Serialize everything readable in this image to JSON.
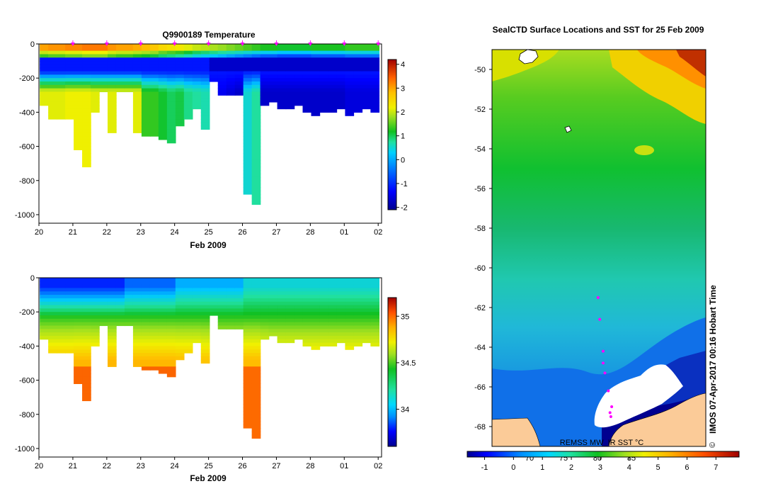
{
  "colors": {
    "jet": [
      "#00008f",
      "#0000ff",
      "#0060ff",
      "#00c8ff",
      "#20e0a0",
      "#10c020",
      "#a0e020",
      "#f0f000",
      "#ffc000",
      "#ff7000",
      "#e02000",
      "#8f0000"
    ],
    "land": "#fbcb98",
    "ice": "#ffffff",
    "marker": "#ff00ff",
    "axis": "#000000"
  },
  "chart_data": [
    {
      "id": "temperature-section",
      "type": "heatmap",
      "title": "Q9900189  Temperature",
      "xlabel": "Feb 2009",
      "ylabel": "",
      "x_tick_labels": [
        "20",
        "21",
        "22",
        "23",
        "24",
        "25",
        "26",
        "27",
        "28",
        "01",
        "02"
      ],
      "x_range_days": [
        20,
        30.1
      ],
      "y_ticks": [
        0,
        -200,
        -400,
        -600,
        -800,
        -1000
      ],
      "ylim": [
        -1050,
        0
      ],
      "colorbar": {
        "min": -2.1,
        "max": 4.2,
        "ticks": [
          4,
          3,
          2,
          1,
          0,
          -1,
          -2
        ]
      },
      "profile_markers_x": [
        21,
        22,
        23,
        24,
        25,
        26,
        27,
        28,
        29,
        30
      ],
      "profiles": {
        "x": [
          20.15,
          20.4,
          20.65,
          20.9,
          21.15,
          21.4,
          21.65,
          21.9,
          22.15,
          22.4,
          22.65,
          22.9,
          23.15,
          23.4,
          23.65,
          23.9,
          24.15,
          24.4,
          24.65,
          24.9,
          25.15,
          25.4,
          25.65,
          25.9,
          26.15,
          26.4,
          26.65,
          26.9,
          27.15,
          27.4,
          27.65,
          27.9,
          28.15,
          28.4,
          28.65,
          28.9,
          29.15,
          29.4,
          29.65,
          29.9
        ],
        "max_depth": [
          360,
          440,
          435,
          430,
          610,
          710,
          390,
          270,
          510,
          270,
          270,
          520,
          540,
          540,
          560,
          565,
          480,
          430,
          380,
          490,
          210,
          300,
          300,
          300,
          865,
          940,
          360,
          340,
          370,
          365,
          360,
          400,
          420,
          400,
          390,
          375,
          420,
          400,
          380,
          390
        ],
        "surface_temp": [
          2.1,
          2.2,
          2.2,
          2.3,
          2.3,
          2.4,
          2.4,
          2.4,
          2.2,
          2.1,
          2.1,
          2.0,
          1.9,
          1.8,
          1.6,
          1.5,
          1.4,
          1.2,
          1.0,
          0.9,
          0.8,
          0.7,
          0.6,
          0.5,
          0.4,
          0.3,
          0.2,
          0.2,
          0.1,
          0.1,
          0.1,
          0.1,
          0.2,
          0.2,
          0.2,
          0.2,
          0.3,
          0.3,
          0.3,
          0.3
        ],
        "deep_temp": [
          1.8,
          1.8,
          1.8,
          1.9,
          1.9,
          1.9,
          1.8,
          1.8,
          1.8,
          1.8,
          1.8,
          1.8,
          0.9,
          0.9,
          0.7,
          0.5,
          0.6,
          0.3,
          0.2,
          0.1,
          -1.6,
          -1.6,
          -1.7,
          -1.8,
          -0.1,
          0.2,
          -1.8,
          -1.8,
          -1.8,
          -1.8,
          -1.8,
          -1.8,
          -1.8,
          -1.8,
          -1.8,
          -1.8,
          -1.7,
          -1.7,
          -1.7,
          -1.7
        ]
      }
    },
    {
      "id": "salinity-section",
      "type": "heatmap",
      "title": "",
      "xlabel": "Feb 2009",
      "ylabel": "",
      "x_tick_labels": [
        "20",
        "21",
        "22",
        "23",
        "24",
        "25",
        "26",
        "27",
        "28",
        "01",
        "02"
      ],
      "x_range_days": [
        20,
        30.1
      ],
      "y_ticks": [
        0,
        -200,
        -400,
        -600,
        -800,
        -1000
      ],
      "ylim": [
        -1050,
        0
      ],
      "colorbar": {
        "min": 33.6,
        "max": 35.2,
        "ticks": [
          35,
          34.5,
          34
        ]
      },
      "profiles": {
        "surface_sal": [
          33.8,
          33.8,
          33.8,
          33.8,
          33.8,
          33.8,
          33.8,
          33.8,
          33.8,
          33.8,
          33.9,
          33.9,
          33.9,
          33.9,
          33.9,
          33.9,
          34.0,
          34.0,
          34.0,
          34.0,
          34.0,
          34.0,
          34.0,
          34.0,
          34.1,
          34.1,
          34.1,
          34.1,
          34.1,
          34.1,
          34.1,
          34.1,
          34.1,
          34.1,
          34.1,
          34.1,
          34.1,
          34.1,
          34.1,
          34.1
        ],
        "deep_sal": [
          34.72,
          34.72,
          34.72,
          34.72,
          34.73,
          34.73,
          34.72,
          34.72,
          34.73,
          34.73,
          34.73,
          34.73,
          34.73,
          34.73,
          34.73,
          34.73,
          34.72,
          34.72,
          34.72,
          34.7,
          34.68,
          34.68,
          34.68,
          34.68,
          34.72,
          34.72,
          34.68,
          34.66,
          34.66,
          34.66,
          34.66,
          34.66,
          34.66,
          34.66,
          34.66,
          34.66,
          34.66,
          34.66,
          34.66,
          34.66
        ]
      }
    },
    {
      "id": "sst-map",
      "type": "heatmap",
      "title": "SealCTD Surface Locations and SST for 25 Feb 2009",
      "xlabel": "",
      "ylabel": "",
      "y_tick_labels": [
        "-50",
        "-52",
        "-54",
        "-56",
        "-58",
        "-60",
        "-62",
        "-64",
        "-66",
        "-68"
      ],
      "lat_range": [
        -49,
        -69
      ],
      "lon_tick_labels": [
        "70",
        "75",
        "80",
        "85"
      ],
      "colorbar": {
        "min": -1.6,
        "max": 7.8,
        "ticks": [
          "-1",
          "0",
          "1",
          "2",
          "3",
          "4",
          "5",
          "6",
          "7"
        ]
      },
      "data_source_label": "REMSS MW_IR SST °C",
      "timestamp_label": "IMOS 07-Apr-2017 00:16 Hobart Time",
      "copyright_symbol": "©",
      "seal_positions": [
        {
          "lon": 76.7,
          "lat": -61.5
        },
        {
          "lon": 76.8,
          "lat": -62.6
        },
        {
          "lon": 77.0,
          "lat": -64.2
        },
        {
          "lon": 77.0,
          "lat": -64.8
        },
        {
          "lon": 77.1,
          "lat": -65.3
        },
        {
          "lon": 77.3,
          "lat": -66.2
        },
        {
          "lon": 77.5,
          "lat": -67.0
        },
        {
          "lon": 77.4,
          "lat": -67.3
        },
        {
          "lon": 77.45,
          "lat": -67.5
        }
      ]
    }
  ]
}
